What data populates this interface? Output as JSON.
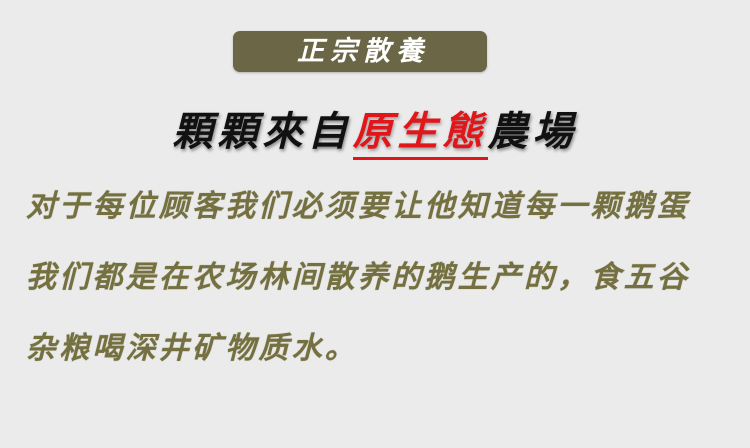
{
  "badge": {
    "label": "正宗散養"
  },
  "headline": {
    "prefix": "顆顆來自",
    "accent": "原生態",
    "suffix": "農場"
  },
  "body": {
    "lines": [
      "对于每位顾客我们必须要让他知道每一颗鹅蛋",
      "我们都是在农场林间散养的鹅生产的，食五谷",
      "杂粮喝深井矿物质水。"
    ]
  },
  "colors": {
    "background": "#ebebeb",
    "badge_bg": "#6b6746",
    "accent_red": "#e0161b",
    "body_text": "#75703f"
  }
}
